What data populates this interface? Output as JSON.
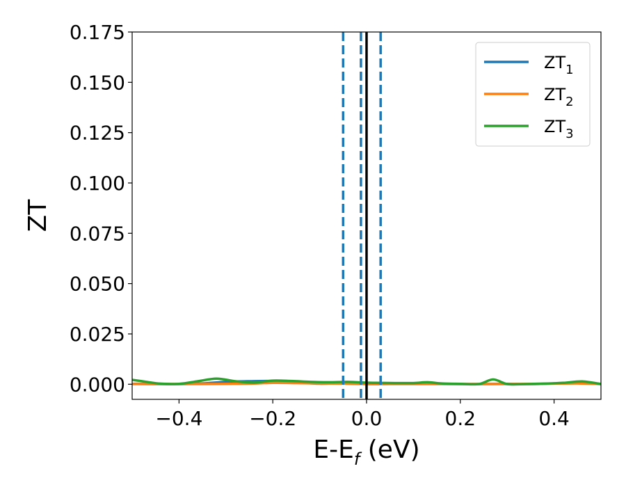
{
  "chart_data": {
    "type": "line",
    "title": "",
    "xlabel": {
      "main": "E-E",
      "sub": "f",
      "tail": " (eV)"
    },
    "ylabel": "ZT",
    "xlim": [
      -0.5,
      0.5
    ],
    "ylim": [
      -0.0075,
      0.175
    ],
    "x_ticks": [
      -0.4,
      -0.2,
      0.0,
      0.2,
      0.4
    ],
    "x_tick_labels": [
      "−0.4",
      "−0.2",
      "0.0",
      "0.2",
      "0.4"
    ],
    "y_ticks": [
      0.0,
      0.025,
      0.05,
      0.075,
      0.1,
      0.125,
      0.15,
      0.175
    ],
    "y_tick_labels": [
      "0.000",
      "0.025",
      "0.050",
      "0.075",
      "0.100",
      "0.125",
      "0.150",
      "0.175"
    ],
    "grid": false,
    "legend_position": "top-right",
    "series": [
      {
        "name": "ZT",
        "sub": "1",
        "color": "#1f77b4",
        "x": [
          -0.5,
          -0.45,
          -0.4,
          -0.35,
          -0.3,
          -0.25,
          -0.2,
          -0.15,
          -0.1,
          -0.05,
          0.0,
          0.05,
          0.1,
          0.15,
          0.2,
          0.25,
          0.3,
          0.35,
          0.4,
          0.45,
          0.5
        ],
        "y": [
          0.0002,
          0.0001,
          0.0001,
          0.0004,
          0.0012,
          0.0015,
          0.0016,
          0.001,
          0.0003,
          0.0006,
          0.0001,
          0.0002,
          0.0003,
          0.0002,
          0.0001,
          0.0001,
          0.0002,
          0.0001,
          0.0004,
          0.0008,
          0.0001
        ]
      },
      {
        "name": "ZT",
        "sub": "2",
        "color": "#ff7f0e",
        "x": [
          -0.5,
          -0.45,
          -0.4,
          -0.35,
          -0.3,
          -0.25,
          -0.2,
          -0.15,
          -0.1,
          -0.05,
          0.0,
          0.05,
          0.1,
          0.15,
          0.2,
          0.25,
          0.3,
          0.35,
          0.4,
          0.45,
          0.5
        ],
        "y": [
          0.0001,
          0.0001,
          0.0001,
          0.0001,
          0.0002,
          0.0003,
          0.0007,
          0.0006,
          0.0004,
          0.0003,
          0.0001,
          0.0001,
          0.0001,
          0.0001,
          0.0001,
          0.0001,
          0.0001,
          0.0002,
          0.0003,
          0.0004,
          0.0001
        ]
      },
      {
        "name": "ZT",
        "sub": "3",
        "color": "#2ca02c",
        "x": [
          -0.5,
          -0.47,
          -0.44,
          -0.4,
          -0.36,
          -0.32,
          -0.28,
          -0.24,
          -0.2,
          -0.16,
          -0.12,
          -0.08,
          -0.04,
          -0.01,
          0.02,
          0.06,
          0.1,
          0.13,
          0.16,
          0.2,
          0.24,
          0.27,
          0.3,
          0.34,
          0.38,
          0.42,
          0.46,
          0.5
        ],
        "y": [
          0.0022,
          0.0012,
          0.0003,
          0.0002,
          0.0015,
          0.0028,
          0.0015,
          0.0008,
          0.0018,
          0.0016,
          0.0012,
          0.001,
          0.0012,
          0.0009,
          0.0007,
          0.0006,
          0.0006,
          0.001,
          0.0004,
          0.0002,
          0.0001,
          0.0024,
          0.0001,
          0.0001,
          0.0003,
          0.0007,
          0.0014,
          0.0001
        ]
      }
    ],
    "vertical_lines": [
      {
        "x": -0.05,
        "style": "dashed",
        "color": "#1f77b4"
      },
      {
        "x": -0.012,
        "style": "dashed",
        "color": "#1f77b4"
      },
      {
        "x": 0.03,
        "style": "dashed",
        "color": "#1f77b4"
      },
      {
        "x": 0.0,
        "style": "solid",
        "color": "#000000"
      }
    ]
  }
}
